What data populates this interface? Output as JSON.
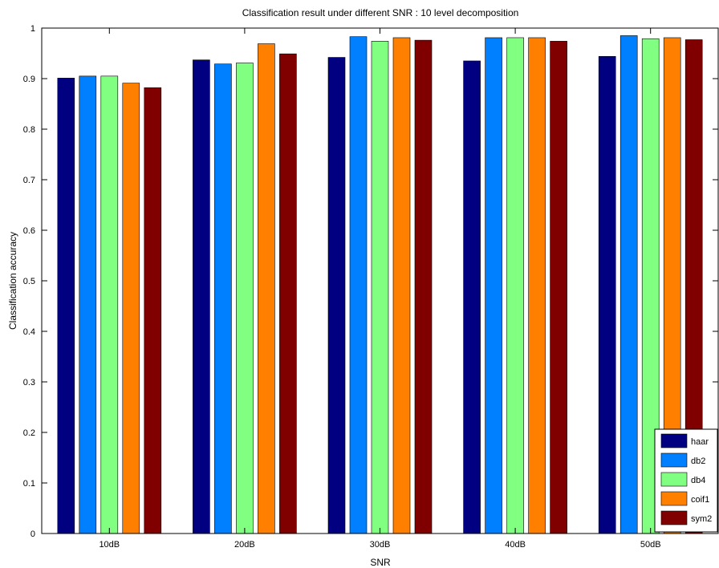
{
  "chart_data": {
    "type": "bar",
    "title": "Classification result under different SNR : 10 level decomposition",
    "xlabel": "SNR",
    "ylabel": "Classification accuracy",
    "categories": [
      "10dB",
      "20dB",
      "30dB",
      "40dB",
      "50dB"
    ],
    "ylim": [
      0,
      1
    ],
    "yticks": [
      "0",
      "0.1",
      "0.2",
      "0.3",
      "0.4",
      "0.5",
      "0.6",
      "0.7",
      "0.8",
      "0.9",
      "1"
    ],
    "grid": false,
    "legend_position": "bottom-right",
    "series": [
      {
        "name": "haar",
        "color": "#000080",
        "values": [
          0.901,
          0.937,
          0.942,
          0.935,
          0.944
        ]
      },
      {
        "name": "db2",
        "color": "#0080ff",
        "values": [
          0.905,
          0.929,
          0.983,
          0.981,
          0.985
        ]
      },
      {
        "name": "db4",
        "color": "#80ff80",
        "values": [
          0.905,
          0.931,
          0.974,
          0.981,
          0.979
        ]
      },
      {
        "name": "coif1",
        "color": "#ff8000",
        "values": [
          0.891,
          0.969,
          0.981,
          0.981,
          0.981
        ]
      },
      {
        "name": "sym2",
        "color": "#800000",
        "values": [
          0.882,
          0.949,
          0.976,
          0.974,
          0.977
        ]
      }
    ]
  }
}
